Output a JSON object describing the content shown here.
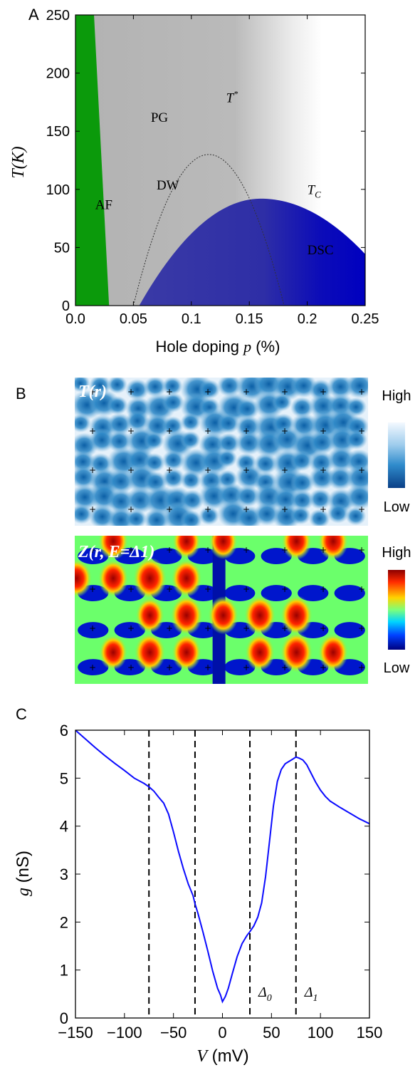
{
  "panel_labels": {
    "a": "A",
    "b": "B",
    "c": "C"
  },
  "chart_data": [
    {
      "type": "area",
      "panel": "A",
      "xlabel": "Hole doping",
      "xlabel_var": "p",
      "xlabel_unit": "(%)",
      "ylabel_var": "T",
      "ylabel_unit": "(K)",
      "xlim": [
        0.0,
        0.25
      ],
      "ylim": [
        0,
        250
      ],
      "x_ticks": [
        0.0,
        0.05,
        0.1,
        0.15,
        0.2,
        0.25
      ],
      "x_tick_labels": [
        "0.0",
        "0.05",
        "0.1",
        "0.15",
        "0.2",
        "0.25"
      ],
      "y_ticks": [
        0,
        50,
        100,
        150,
        200,
        250
      ],
      "y_tick_labels": [
        "0",
        "50",
        "100",
        "150",
        "200",
        "250"
      ],
      "regions": [
        {
          "name": "AF",
          "color": "#0b9a0b",
          "boundary_x_at_T0": 0.029,
          "boundary_x_at_T250": 0.016
        },
        {
          "name": "PG",
          "color": "#b4b4b4",
          "text": "PG"
        },
        {
          "name": "DSC",
          "color": "#0a0ab0",
          "text": "DSC",
          "dome": {
            "x_start": 0.055,
            "x_end": 0.25,
            "x_peak": 0.16,
            "T_peak": 92
          }
        },
        {
          "name": "DW",
          "text": "DW",
          "style": "dotted",
          "dome": {
            "x_start": 0.05,
            "x_end": 0.18,
            "x_peak": 0.115,
            "T_peak": 130
          }
        }
      ],
      "annotations": [
        {
          "text": "AF",
          "x": 0.017,
          "y": 83
        },
        {
          "text": "PG",
          "x": 0.065,
          "y": 158
        },
        {
          "text": "DW",
          "x": 0.07,
          "y": 100
        },
        {
          "text": "T*",
          "x": 0.13,
          "y": 175
        },
        {
          "text": "T_C",
          "x": 0.2,
          "y": 96
        },
        {
          "text": "DSC",
          "x": 0.2,
          "y": 44
        }
      ],
      "T_star_line": {
        "x_at_T250": 0.175,
        "x_at_T0": 0.24
      }
    },
    {
      "type": "heatmap",
      "panel": "B-top",
      "label": "T(r)",
      "colorbar": {
        "high": "High",
        "low": "Low",
        "colors": [
          "#f4f9ff",
          "#6fb3de",
          "#0d6bb0",
          "#0a3f86"
        ]
      },
      "lattice_cols": 8,
      "lattice_rows": 4
    },
    {
      "type": "heatmap",
      "panel": "B-bottom",
      "label": "Z(r, E=Δ1)",
      "colorbar": {
        "high": "High",
        "low": "Low",
        "colors": [
          "#8b0000",
          "#ff2a00",
          "#ffd400",
          "#7dff7a",
          "#00d4ff",
          "#0040ff",
          "#00007f"
        ]
      },
      "lattice_cols": 8,
      "lattice_rows": 4
    },
    {
      "type": "line",
      "panel": "C",
      "xlabel_var": "V",
      "xlabel_unit": "(mV)",
      "ylabel_var": "g",
      "ylabel_unit": "(nS)",
      "xlim": [
        -150,
        150
      ],
      "ylim": [
        0,
        6
      ],
      "x_ticks": [
        -150,
        -100,
        -50,
        0,
        50,
        100,
        150
      ],
      "x_tick_labels": [
        "−150",
        "−100",
        "−50",
        "0",
        "50",
        "100",
        "150"
      ],
      "y_ticks": [
        0,
        1,
        2,
        3,
        4,
        5,
        6
      ],
      "y_tick_labels": [
        "0",
        "1",
        "2",
        "3",
        "4",
        "5",
        "6"
      ],
      "line_color": "#0a0aff",
      "vlines": [
        -75,
        -28,
        28,
        75
      ],
      "vline_labels": [
        {
          "x": 28,
          "text": "Δ",
          "sub": "0"
        },
        {
          "x": 75,
          "text": "Δ",
          "sub": "1"
        }
      ],
      "series": [
        {
          "x": [
            -150,
            -140,
            -130,
            -120,
            -110,
            -100,
            -90,
            -80,
            -75,
            -70,
            -65,
            -60,
            -55,
            -50,
            -45,
            -40,
            -35,
            -30,
            -28,
            -25,
            -20,
            -15,
            -10,
            -5,
            -2,
            0,
            3,
            6,
            10,
            15,
            20,
            25,
            28,
            32,
            36,
            40,
            44,
            48,
            52,
            56,
            60,
            64,
            68,
            72,
            75,
            78,
            82,
            86,
            90,
            95,
            100,
            105,
            110,
            120,
            130,
            140,
            150
          ],
          "y": [
            6.0,
            5.82,
            5.64,
            5.47,
            5.31,
            5.16,
            5.0,
            4.89,
            4.82,
            4.73,
            4.6,
            4.48,
            4.25,
            3.88,
            3.48,
            3.12,
            2.8,
            2.55,
            2.38,
            2.18,
            1.8,
            1.4,
            0.98,
            0.62,
            0.48,
            0.34,
            0.45,
            0.62,
            0.92,
            1.28,
            1.55,
            1.72,
            1.8,
            1.92,
            2.1,
            2.4,
            2.95,
            3.68,
            4.42,
            4.93,
            5.18,
            5.3,
            5.35,
            5.4,
            5.44,
            5.42,
            5.38,
            5.28,
            5.12,
            4.92,
            4.75,
            4.62,
            4.52,
            4.39,
            4.27,
            4.15,
            4.05
          ]
        }
      ]
    }
  ]
}
